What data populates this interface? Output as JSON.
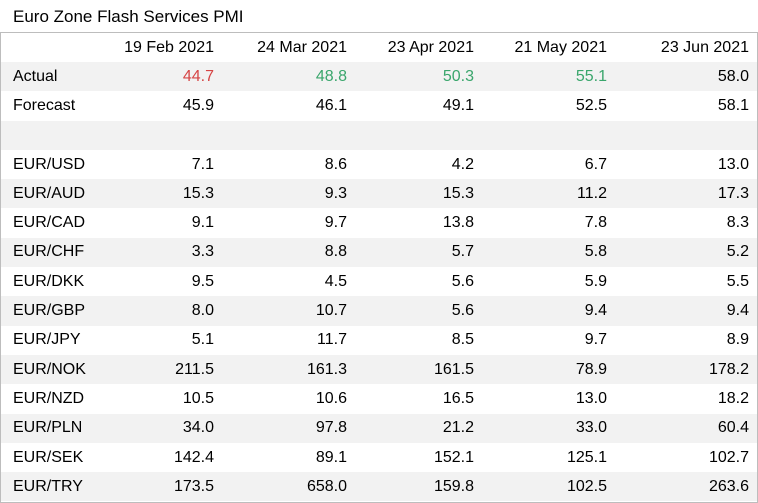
{
  "title": "Euro Zone Flash Services PMI",
  "columns": [
    "",
    "19 Feb 2021",
    "24 Mar 2021",
    "23 Apr 2021",
    "21 May 2021",
    "23 Jun 2021"
  ],
  "actual": {
    "label": "Actual",
    "values": [
      "44.7",
      "48.8",
      "50.3",
      "55.1",
      "58.0"
    ],
    "status": [
      "miss",
      "beat",
      "beat",
      "beat",
      "neutral"
    ]
  },
  "forecast": {
    "label": "Forecast",
    "values": [
      "45.9",
      "46.1",
      "49.1",
      "52.5",
      "58.1"
    ]
  },
  "pairs": [
    {
      "pair": "EUR/USD",
      "values": [
        "7.1",
        "8.6",
        "4.2",
        "6.7",
        "13.0"
      ]
    },
    {
      "pair": "EUR/AUD",
      "values": [
        "15.3",
        "9.3",
        "15.3",
        "11.2",
        "17.3"
      ]
    },
    {
      "pair": "EUR/CAD",
      "values": [
        "9.1",
        "9.7",
        "13.8",
        "7.8",
        "8.3"
      ]
    },
    {
      "pair": "EUR/CHF",
      "values": [
        "3.3",
        "8.8",
        "5.7",
        "5.8",
        "5.2"
      ]
    },
    {
      "pair": "EUR/DKK",
      "values": [
        "9.5",
        "4.5",
        "5.6",
        "5.9",
        "5.5"
      ]
    },
    {
      "pair": "EUR/GBP",
      "values": [
        "8.0",
        "10.7",
        "5.6",
        "9.4",
        "9.4"
      ]
    },
    {
      "pair": "EUR/JPY",
      "values": [
        "5.1",
        "11.7",
        "8.5",
        "9.7",
        "8.9"
      ]
    },
    {
      "pair": "EUR/NOK",
      "values": [
        "211.5",
        "161.3",
        "161.5",
        "78.9",
        "178.2"
      ]
    },
    {
      "pair": "EUR/NZD",
      "values": [
        "10.5",
        "10.6",
        "16.5",
        "13.0",
        "18.2"
      ]
    },
    {
      "pair": "EUR/PLN",
      "values": [
        "34.0",
        "97.8",
        "21.2",
        "33.0",
        "60.4"
      ]
    },
    {
      "pair": "EUR/SEK",
      "values": [
        "142.4",
        "89.1",
        "152.1",
        "125.1",
        "102.7"
      ]
    },
    {
      "pair": "EUR/TRY",
      "values": [
        "173.5",
        "658.0",
        "159.8",
        "102.5",
        "263.6"
      ]
    }
  ],
  "colors": {
    "miss": "#d64545",
    "beat": "#3aa66c",
    "shade": "#f2f2f2",
    "border": "#bdbdbd"
  }
}
